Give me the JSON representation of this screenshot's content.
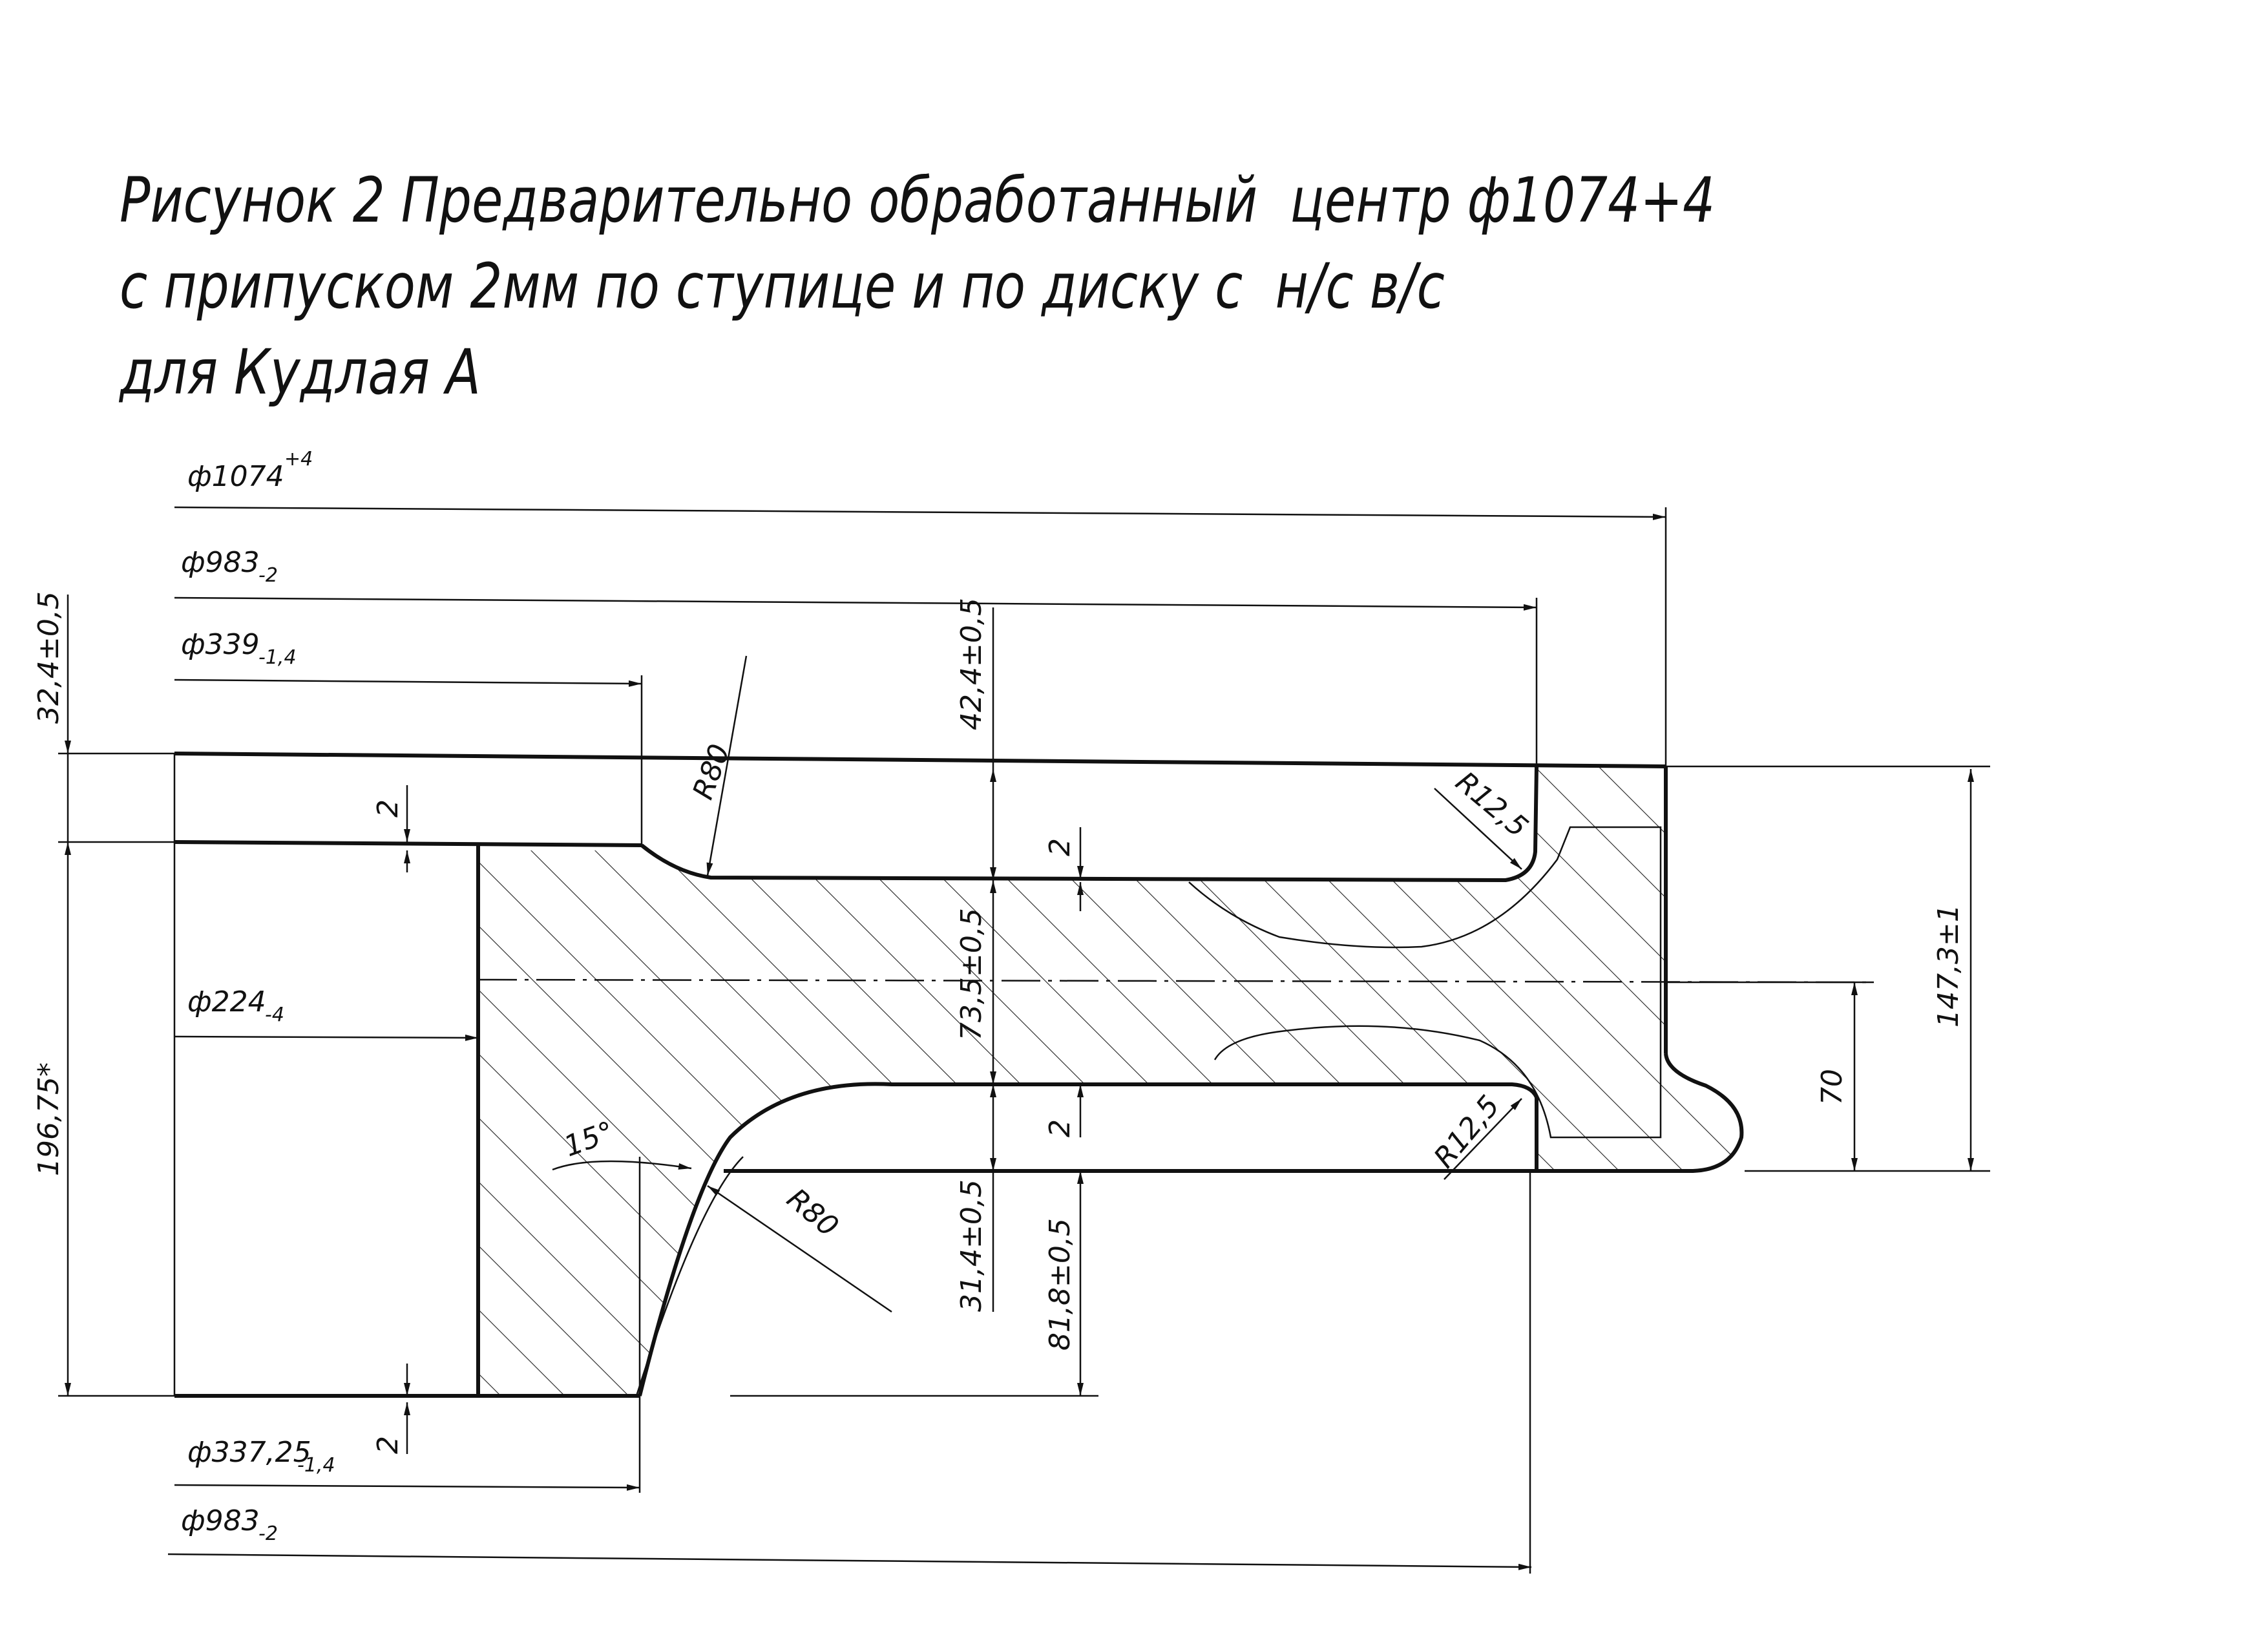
{
  "title": {
    "line1": "Рисунок 2 Предварительно обработанный  центр ф1074+4",
    "line2": "с припуском 2мм по ступице и по диску с  н/с в/с",
    "line3": "для Кудлая А"
  },
  "dimensions": {
    "d1074": {
      "base": "ф1074",
      "tol": "+4"
    },
    "d983_top": {
      "base": "ф983",
      "tol": "-2"
    },
    "d339": {
      "base": "ф339",
      "tol": "-1,4"
    },
    "d224": {
      "base": "ф224",
      "tol": "-4"
    },
    "d337": {
      "base": "ф337,25",
      "tol": "-1,4"
    },
    "d983_bottom": {
      "base": "ф983",
      "tol": "-2"
    },
    "h324": "32,4±0,5",
    "h424": "42,4±0,5",
    "h735": "73,5±0,5",
    "h314": "31,4±0,5",
    "h818": "81,8±0,5",
    "h1473": "147,3±1",
    "h19675": "196,75*",
    "h70": "70",
    "allowance": "2",
    "r80": "R80",
    "r125": "R12,5",
    "angle15": "15°"
  },
  "colors": {
    "ink": "#111111",
    "paper": "#ffffff"
  }
}
